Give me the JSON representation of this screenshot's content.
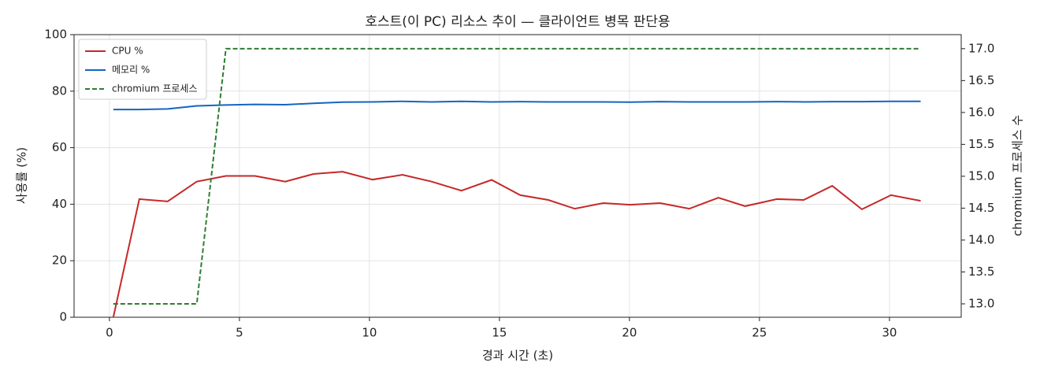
{
  "chart_data": {
    "type": "line",
    "title": "호스트(이 PC) 리소스 추이 — 클라이언트 병목 판단용",
    "x_label": "경과 시간 (초)",
    "y_label": "사용률 (%)",
    "y2_label": "chromium 프로세스 수",
    "x": [
      0.15,
      1.15,
      2.24,
      3.36,
      4.48,
      5.6,
      6.76,
      7.85,
      8.97,
      10.12,
      11.27,
      12.39,
      13.54,
      14.7,
      15.8,
      16.88,
      17.9,
      19.0,
      20.03,
      21.18,
      22.3,
      23.42,
      24.45,
      25.67,
      26.7,
      27.8,
      28.94,
      30.06,
      31.2
    ],
    "series": [
      {
        "name": "CPU %",
        "color": "#c62828",
        "dash": "solid",
        "values": [
          0,
          41.8,
          41,
          48,
          50,
          50,
          48,
          50.7,
          51.5,
          48.7,
          50.4,
          48,
          44.8,
          48.6,
          43.2,
          41.5,
          38.4,
          40.4,
          39.8,
          40.4,
          38.4,
          42.3,
          39.3,
          41.8,
          41.5,
          46.5,
          38.2,
          43.2,
          41.2
        ]
      },
      {
        "name": "메모리 %",
        "color": "#1565c0",
        "dash": "solid",
        "values": [
          73.5,
          73.5,
          73.7,
          74.8,
          75.1,
          75.3,
          75.2,
          75.7,
          76.1,
          76.2,
          76.4,
          76.2,
          76.4,
          76.2,
          76.3,
          76.2,
          76.2,
          76.2,
          76.1,
          76.3,
          76.2,
          76.2,
          76.2,
          76.3,
          76.2,
          76.3,
          76.3,
          76.4,
          76.4
        ]
      },
      {
        "name": "chromium 프로세스",
        "color": "#2e7d32",
        "dash": "dashed",
        "axis": "y2",
        "values": [
          13,
          13,
          13,
          13,
          17,
          17,
          17,
          17,
          17,
          17,
          17,
          17,
          17,
          17,
          17,
          17,
          17,
          17,
          17,
          17,
          17,
          17,
          17,
          17,
          17,
          17,
          17,
          17,
          17
        ]
      }
    ],
    "xlim": [
      -1.36,
      32.76
    ],
    "xticks": [
      0,
      5,
      10,
      15,
      20,
      25,
      30
    ],
    "ylim": [
      0,
      100
    ],
    "yticks": [
      0,
      20,
      40,
      60,
      80,
      100
    ],
    "y2lim": [
      12.79,
      17.22
    ],
    "y2ticks": [
      {
        "value": 13,
        "label": "13.0"
      },
      13.5,
      {
        "value": 14,
        "label": "14.0"
      },
      14.5,
      {
        "value": 15,
        "label": "15.0"
      },
      15.5,
      {
        "value": 16,
        "label": "16.0"
      },
      16.5,
      {
        "value": 17,
        "label": "17.0"
      }
    ],
    "grid": true,
    "legend": "upper-left"
  }
}
